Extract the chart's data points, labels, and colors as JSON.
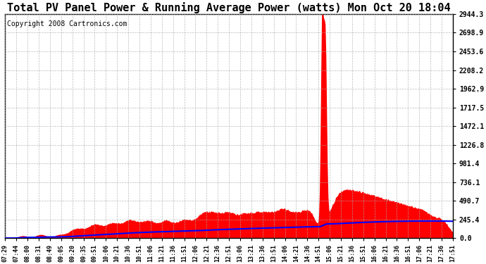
{
  "title": "Total PV Panel Power & Running Average Power (watts) Mon Oct 20 18:04",
  "copyright": "Copyright 2008 Cartronics.com",
  "ylabel_right": [
    "2944.3",
    "2698.9",
    "2453.6",
    "2208.2",
    "1962.9",
    "1717.5",
    "1472.1",
    "1226.8",
    "981.4",
    "736.1",
    "490.7",
    "245.4",
    "0.0"
  ],
  "ytick_values": [
    2944.3,
    2698.9,
    2453.6,
    2208.2,
    1962.9,
    1717.5,
    1472.1,
    1226.8,
    981.4,
    736.1,
    490.7,
    245.4,
    0.0
  ],
  "ymax": 2944.3,
  "ymin": 0.0,
  "x_labels": [
    "07:29",
    "07:44",
    "08:00",
    "08:31",
    "08:49",
    "09:05",
    "09:20",
    "09:35",
    "09:51",
    "10:06",
    "10:21",
    "10:36",
    "10:51",
    "11:06",
    "11:21",
    "11:36",
    "11:51",
    "12:06",
    "12:21",
    "12:36",
    "12:51",
    "13:06",
    "13:21",
    "13:36",
    "13:51",
    "14:06",
    "14:21",
    "14:36",
    "14:51",
    "15:06",
    "15:21",
    "15:36",
    "15:51",
    "16:06",
    "16:21",
    "16:36",
    "16:51",
    "17:06",
    "17:21",
    "17:36",
    "17:51"
  ],
  "bg_color": "#ffffff",
  "plot_bg_color": "#ffffff",
  "grid_color": "#aaaaaa",
  "red_color": "#ff0000",
  "blue_color": "#0000ff",
  "title_fontsize": 11,
  "copyright_fontsize": 7,
  "ylabel_fontsize": 7,
  "xlabel_fontsize": 6
}
